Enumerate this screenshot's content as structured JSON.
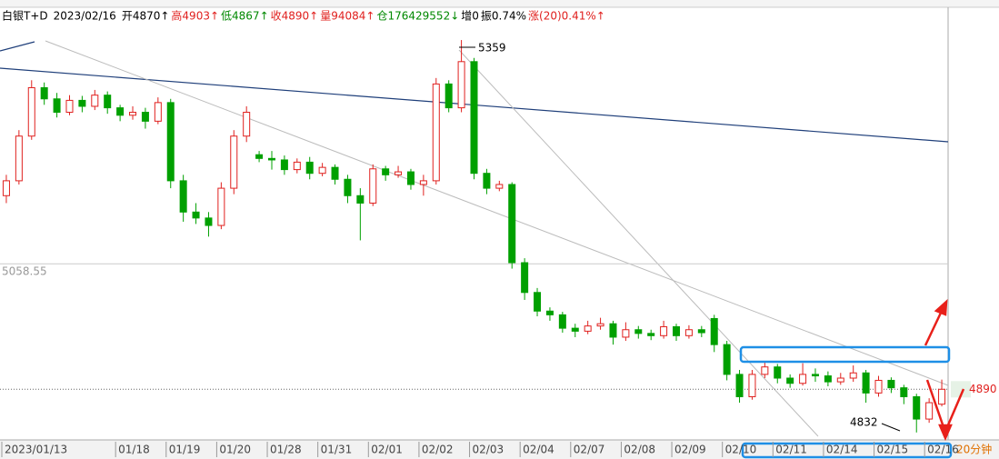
{
  "chart_data": {
    "type": "candlestick",
    "header": [
      {
        "text": "白银T+D",
        "color": "#000000"
      },
      {
        "text": "2023/02/16",
        "color": "#000000"
      },
      {
        "text": "开4870↑",
        "color": "#000000"
      },
      {
        "text": "高4903↑",
        "color": "#e0201e"
      },
      {
        "text": "低4867↑",
        "color": "#008800"
      },
      {
        "text": "收4890↑",
        "color": "#e0201e"
      },
      {
        "text": "量94084↑",
        "color": "#e0201e"
      },
      {
        "text": "仓176429552↓",
        "color": "#008800"
      },
      {
        "text": "增0",
        "color": "#000000"
      },
      {
        "text": "振0.74%",
        "color": "#000000"
      },
      {
        "text": "涨(20)0.41%↑",
        "color": "#e0201e"
      }
    ],
    "period": "20分钟",
    "categories": [
      "2023/01/13",
      null,
      null,
      null,
      null,
      null,
      null,
      null,
      null,
      "01/18",
      null,
      null,
      null,
      "01/19",
      null,
      null,
      null,
      "01/20",
      null,
      null,
      null,
      "01/28",
      null,
      null,
      null,
      "01/31",
      null,
      null,
      null,
      "02/01",
      null,
      null,
      null,
      "02/02",
      null,
      null,
      null,
      "02/03",
      null,
      null,
      null,
      "02/04",
      null,
      null,
      null,
      "02/07",
      null,
      null,
      null,
      "02/08",
      null,
      null,
      null,
      "02/09",
      null,
      null,
      null,
      "02/10",
      null,
      null,
      null,
      "02/11",
      null,
      null,
      null,
      "02/14",
      null,
      null,
      null,
      "02/15",
      null,
      null,
      null,
      "02/16",
      null
    ],
    "open": [
      5150,
      5170,
      5230,
      5295,
      5280,
      5262,
      5278,
      5270,
      5285,
      5268,
      5258,
      5262,
      5250,
      5275,
      5170,
      5128,
      5120,
      5110,
      5160,
      5230,
      5205,
      5200,
      5198,
      5185,
      5195,
      5180,
      5188,
      5172,
      5150,
      5140,
      5186,
      5178,
      5182,
      5165,
      5170,
      5300,
      5268,
      5330,
      5180,
      5160,
      5165,
      5060,
      5020,
      4995,
      4990,
      4972,
      4968,
      4975,
      4978,
      4960,
      4970,
      4965,
      4962,
      4974,
      4962,
      4970,
      4985,
      4950,
      4910,
      4880,
      4910,
      4920,
      4905,
      4898,
      4910,
      4908,
      4900,
      4905,
      4912,
      4885,
      4902,
      4892,
      4880,
      4850,
      4870
    ],
    "high": [
      5178,
      5238,
      5305,
      5302,
      5288,
      5285,
      5284,
      5292,
      5290,
      5272,
      5270,
      5268,
      5282,
      5280,
      5178,
      5140,
      5128,
      5168,
      5238,
      5270,
      5210,
      5210,
      5204,
      5200,
      5202,
      5194,
      5192,
      5178,
      5160,
      5192,
      5190,
      5190,
      5186,
      5178,
      5308,
      5305,
      5359,
      5335,
      5186,
      5170,
      5168,
      5066,
      5026,
      5000,
      4994,
      4978,
      4982,
      4986,
      4982,
      4980,
      4975,
      4970,
      4982,
      4978,
      4976,
      4975,
      4990,
      4955,
      4916,
      4916,
      4928,
      4924,
      4910,
      4925,
      4918,
      4914,
      4912,
      4922,
      4916,
      4908,
      4906,
      4896,
      4884,
      4878,
      4903
    ],
    "low": [
      5140,
      5165,
      5225,
      5272,
      5255,
      5258,
      5262,
      5265,
      5260,
      5250,
      5252,
      5240,
      5246,
      5160,
      5115,
      5112,
      5095,
      5105,
      5152,
      5222,
      5195,
      5185,
      5178,
      5180,
      5172,
      5176,
      5165,
      5140,
      5090,
      5136,
      5170,
      5174,
      5158,
      5150,
      5165,
      5262,
      5262,
      5172,
      5152,
      5156,
      5052,
      5010,
      4988,
      4982,
      4966,
      4960,
      4964,
      4970,
      4950,
      4955,
      4958,
      4956,
      4958,
      4955,
      4958,
      4960,
      4940,
      4902,
      4872,
      4876,
      4905,
      4898,
      4892,
      4895,
      4900,
      4894,
      4896,
      4900,
      4872,
      4880,
      4885,
      4870,
      4832,
      4845,
      4867
    ],
    "close": [
      5170,
      5230,
      5295,
      5280,
      5262,
      5278,
      5270,
      5285,
      5268,
      5258,
      5262,
      5250,
      5275,
      5170,
      5128,
      5120,
      5110,
      5160,
      5230,
      5262,
      5200,
      5198,
      5185,
      5195,
      5180,
      5188,
      5172,
      5150,
      5140,
      5186,
      5178,
      5182,
      5165,
      5170,
      5300,
      5268,
      5330,
      5180,
      5160,
      5165,
      5060,
      5020,
      4995,
      4990,
      4972,
      4968,
      4975,
      4978,
      4960,
      4970,
      4965,
      4962,
      4974,
      4962,
      4970,
      4966,
      4950,
      4910,
      4880,
      4910,
      4920,
      4905,
      4898,
      4910,
      4908,
      4900,
      4905,
      4912,
      4885,
      4902,
      4892,
      4880,
      4850,
      4872,
      4890
    ],
    "up_color": "#e0201e",
    "down_color": "#00a000",
    "ylim": [
      4822,
      5403
    ],
    "ref_lines": [
      {
        "value": 5058.55,
        "side": "left",
        "style": "solid"
      },
      {
        "value": 4890,
        "side": "right",
        "style": "dotted"
      }
    ],
    "high_label": "5359",
    "low_label": "4832"
  }
}
